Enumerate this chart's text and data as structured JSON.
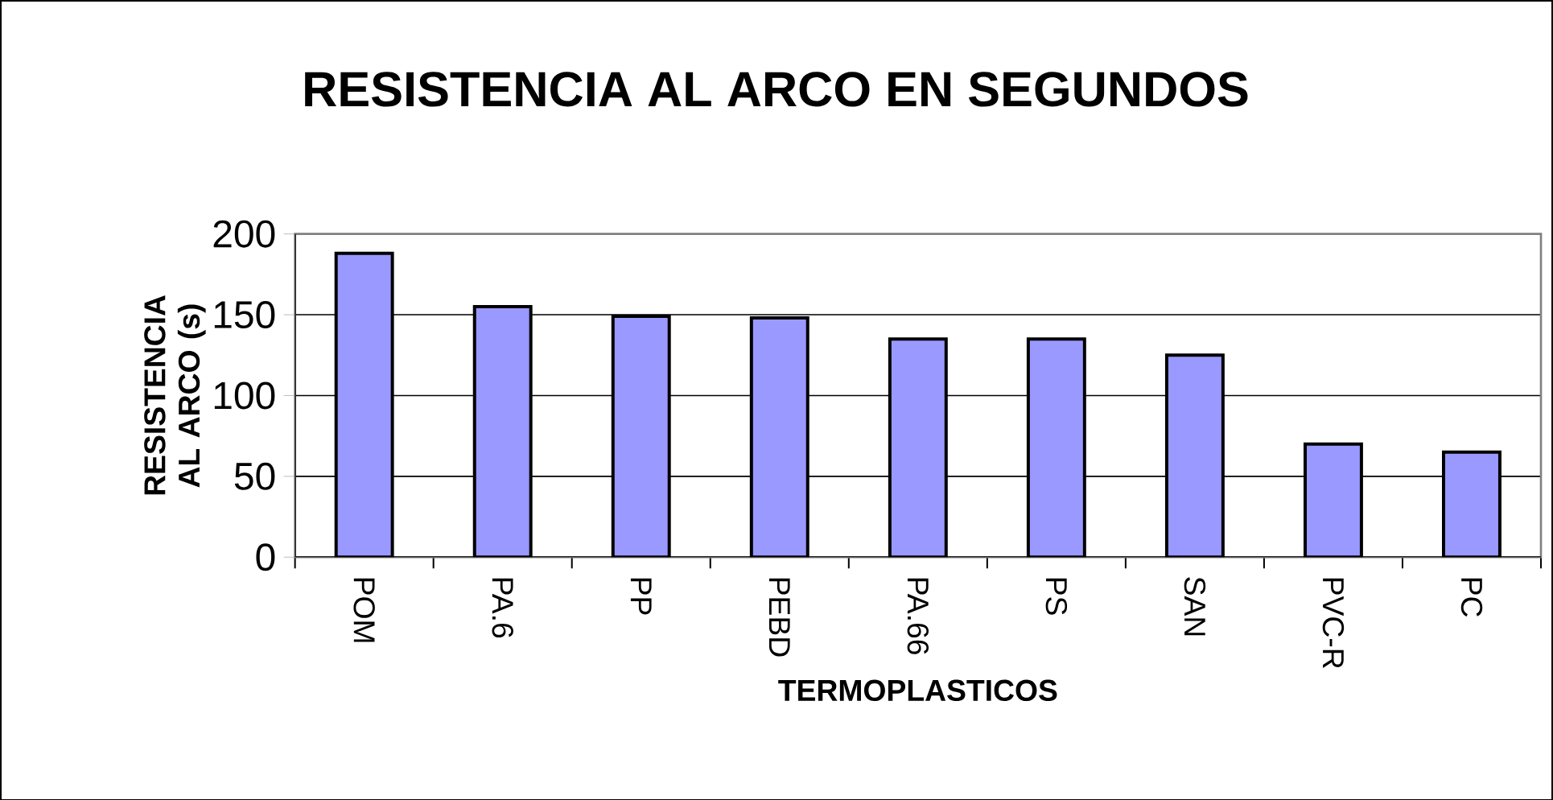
{
  "chart_data": {
    "type": "bar",
    "title": "RESISTENCIA AL ARCO EN SEGUNDOS",
    "xlabel": "TERMOPLASTICOS",
    "ylabel": "RESISTENCIA AL ARCO (s)",
    "categories": [
      "POM",
      "PA.6",
      "PP",
      "PEBD",
      "PA.66",
      "PS",
      "SAN",
      "PVC-R",
      "PC"
    ],
    "values": [
      188,
      155,
      149,
      148,
      135,
      135,
      125,
      70,
      65
    ],
    "color": "#9999ff",
    "ylim": [
      0,
      200
    ],
    "yticks": [
      0,
      50,
      100,
      150,
      200
    ],
    "grid": "y"
  }
}
